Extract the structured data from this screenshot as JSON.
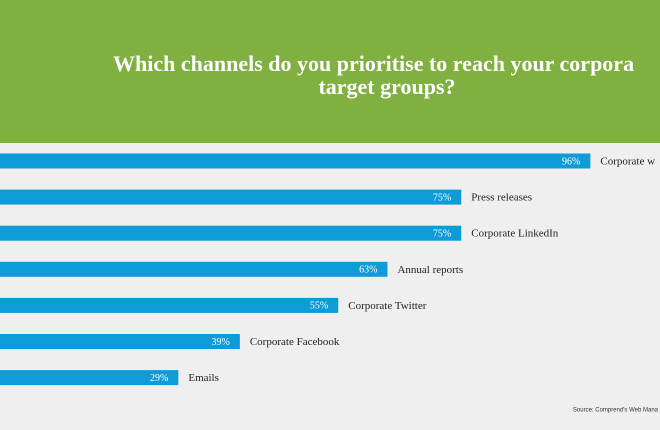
{
  "chart_data": {
    "type": "bar",
    "title": [
      "Which channels do you prioritise to reach your corpora",
      "target groups?"
    ],
    "categories": [
      "Corporate w",
      "Press releases",
      "Corporate LinkedIn",
      "Annual reports",
      "Corporate Twitter",
      "Corporate Facebook",
      "Emails"
    ],
    "values": [
      96,
      75,
      75,
      63,
      55,
      39,
      29
    ],
    "value_labels": [
      "96%",
      "75%",
      "75%",
      "63%",
      "55%",
      "39%",
      "29%"
    ],
    "color": "#0f9bd7",
    "source": "Source: Comprend's Web Mana"
  }
}
